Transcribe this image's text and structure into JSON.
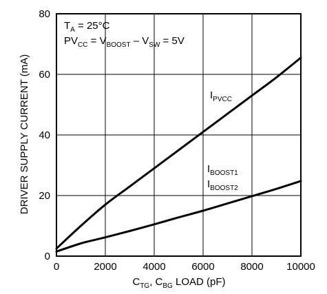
{
  "chart_data": {
    "type": "line",
    "xlabel": {
      "main": "C",
      "sub1": "TG",
      "sep": ", C",
      "sub2": "BG",
      "tail": " LOAD (pF)"
    },
    "ylabel": "DRIVER SUPPLY CURRENT (mA)",
    "xlim": [
      0,
      10000
    ],
    "ylim": [
      0,
      80
    ],
    "x_ticks": [
      "0",
      "2000",
      "4000",
      "6000",
      "8000",
      "10000"
    ],
    "y_ticks": [
      "0",
      "20",
      "40",
      "60",
      "80"
    ],
    "grid": true,
    "conditions": {
      "line1": {
        "main": "T",
        "sub": "A",
        "tail": " = 25°C"
      },
      "line2": {
        "p1": "PV",
        "s1": "CC",
        "p2": " = V",
        "s2": "BOOST",
        "p3": " – V",
        "s3": "SW",
        "p4": " = 5V"
      }
    },
    "series": [
      {
        "name": "PVCC",
        "label": {
          "main": "I",
          "sub": "PVCC"
        },
        "x": [
          0,
          1000,
          2000,
          3000,
          4000,
          5000,
          6000,
          7000,
          8000,
          9000,
          10000
        ],
        "y": [
          2.5,
          10,
          17,
          23,
          29,
          35,
          41,
          47,
          53,
          59,
          65.5
        ]
      },
      {
        "name": "BOOST1, BOOST2",
        "label": {
          "main": "I",
          "sub1": "BOOST1",
          "sub2": "BOOST2"
        },
        "x": [
          0,
          1000,
          2000,
          3000,
          4000,
          5000,
          6000,
          7000,
          8000,
          9000,
          10000
        ],
        "y": [
          1.5,
          4.2,
          6.2,
          8.3,
          10.5,
          12.8,
          15,
          17.4,
          19.8,
          22.2,
          24.8
        ]
      }
    ]
  }
}
